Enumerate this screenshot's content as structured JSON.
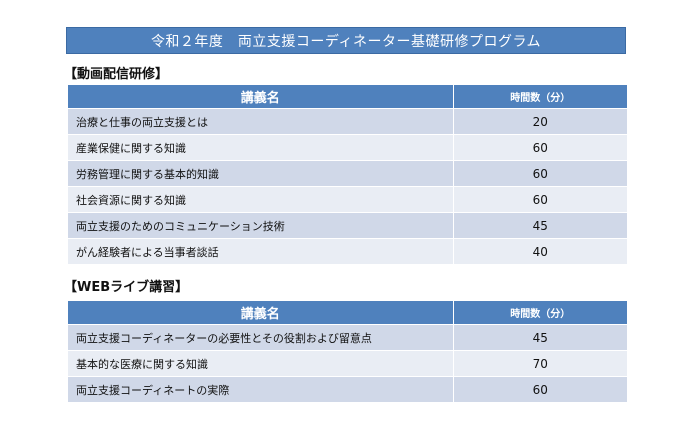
{
  "title": "令和２年度　両立支援コーディネーター基礎研修プログラム",
  "sections": [
    {
      "heading": "【動画配信研修】",
      "header": {
        "name": "講義名",
        "time": "時間数（分）"
      },
      "rows": [
        {
          "name": "治療と仕事の両立支援とは",
          "time": "20"
        },
        {
          "name": "産業保健に関する知識",
          "time": "60"
        },
        {
          "name": "労務管理に関する基本的知識",
          "time": "60"
        },
        {
          "name": "社会資源に関する知識",
          "time": "60"
        },
        {
          "name": "両立支援のためのコミュニケーション技術",
          "time": "45"
        },
        {
          "name": "がん経験者による当事者談話",
          "time": "40"
        }
      ]
    },
    {
      "heading": "【WEBライブ講習】",
      "header": {
        "name": "講義名",
        "time": "時間数（分）"
      },
      "rows": [
        {
          "name": "両立支援コーディネーターの必要性とその役割および留意点",
          "time": "45"
        },
        {
          "name": "基本的な医療に関する知識",
          "time": "70"
        },
        {
          "name": "両立支援コーディネートの実際",
          "time": "60"
        }
      ]
    }
  ]
}
